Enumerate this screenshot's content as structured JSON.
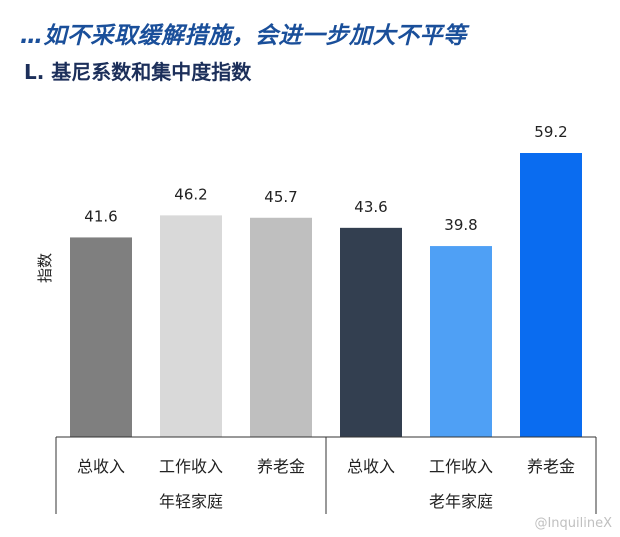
{
  "title": "…如不采取缓解措施，会进一步加大不平等",
  "subtitle": "L. 基尼系数和集中度指数",
  "watermark": "@InquilineX",
  "chart_data": {
    "type": "bar",
    "ylabel": "指数",
    "ylim": [
      0,
      65
    ],
    "groups": [
      {
        "name": "年轻家庭",
        "categories": [
          "总收入",
          "工作收入",
          "养老金"
        ],
        "values": [
          41.6,
          46.2,
          45.7
        ],
        "value_labels": [
          "41.6",
          "46.2",
          "45.7"
        ],
        "colors": [
          "#7f7f7f",
          "#d9d9d9",
          "#bfbfbf"
        ]
      },
      {
        "name": "老年家庭",
        "categories": [
          "总收入",
          "工作收入",
          "养老金"
        ],
        "values": [
          43.6,
          39.8,
          59.2
        ],
        "value_labels": [
          "43.6",
          "39.8",
          "59.2"
        ],
        "colors": [
          "#333f50",
          "#4fa0f5",
          "#0a6cf0"
        ]
      }
    ]
  }
}
